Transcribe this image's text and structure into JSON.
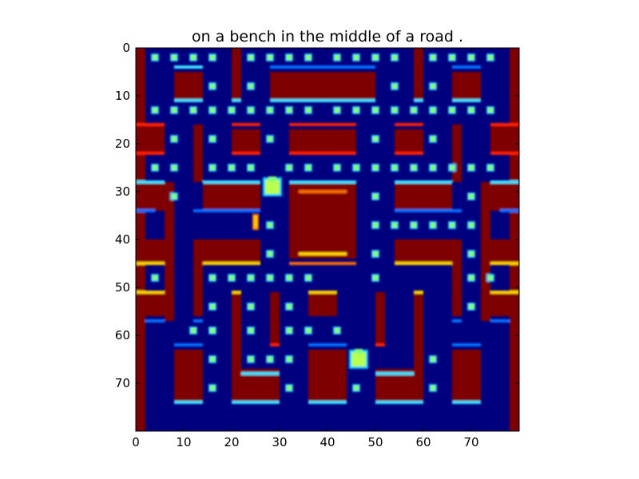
{
  "chart_data": {
    "type": "heatmap",
    "title": "on a bench in the middle of a road .",
    "colormap": "jet",
    "grid": false,
    "legend": "none",
    "xlim": [
      0,
      80
    ],
    "ylim": [
      0,
      80
    ],
    "x_origin": "left",
    "y_origin": "top",
    "x_ticks": [
      0,
      10,
      20,
      30,
      40,
      50,
      60,
      70
    ],
    "y_ticks": [
      0,
      10,
      20,
      30,
      40,
      50,
      60,
      70
    ],
    "colors": {
      "background": "#00007f",
      "wall": "#7f0000",
      "pellet": "#7fff7f",
      "edge_cyan": "#40e0ff",
      "edge_yellow": "#ffd000",
      "edge_orange": "#ff6a00",
      "edge_red": "#ff1a00",
      "edge_blue": "#0070ff",
      "sprite": "#b8ff50"
    },
    "walls": [
      [
        0,
        0,
        2,
        80
      ],
      [
        78,
        0,
        2,
        80
      ],
      [
        8,
        5,
        6,
        6
      ],
      [
        20,
        0,
        2,
        11
      ],
      [
        28,
        5,
        22,
        6
      ],
      [
        58,
        0,
        2,
        11
      ],
      [
        66,
        5,
        6,
        6
      ],
      [
        0,
        16,
        6,
        6
      ],
      [
        74,
        16,
        6,
        6
      ],
      [
        12,
        16,
        2,
        12
      ],
      [
        20,
        17,
        6,
        5
      ],
      [
        32,
        17,
        14,
        5
      ],
      [
        54,
        17,
        6,
        5
      ],
      [
        66,
        16,
        2,
        12
      ],
      [
        14,
        28,
        12,
        6
      ],
      [
        54,
        28,
        12,
        6
      ],
      [
        0,
        28,
        6,
        6
      ],
      [
        74,
        28,
        6,
        6
      ],
      [
        6,
        28,
        2,
        29
      ],
      [
        72,
        28,
        2,
        29
      ],
      [
        32,
        28,
        14,
        16
      ],
      [
        0,
        40,
        6,
        5
      ],
      [
        74,
        40,
        6,
        5
      ],
      [
        12,
        40,
        14,
        5
      ],
      [
        54,
        40,
        14,
        5
      ],
      [
        12,
        45,
        2,
        11
      ],
      [
        66,
        45,
        2,
        11
      ],
      [
        0,
        51,
        6,
        5
      ],
      [
        74,
        51,
        6,
        5
      ],
      [
        20,
        51,
        2,
        16
      ],
      [
        58,
        51,
        2,
        16
      ],
      [
        28,
        51,
        2,
        11
      ],
      [
        50,
        51,
        2,
        11
      ],
      [
        36,
        51,
        6,
        5
      ],
      [
        8,
        63,
        6,
        11
      ],
      [
        20,
        67,
        10,
        7
      ],
      [
        36,
        63,
        8,
        11
      ],
      [
        50,
        67,
        10,
        7
      ],
      [
        66,
        63,
        6,
        11
      ],
      [
        42,
        33,
        0,
        0
      ]
    ],
    "pellets": [
      [
        4,
        2
      ],
      [
        8,
        2
      ],
      [
        12,
        2
      ],
      [
        16,
        2
      ],
      [
        24,
        2
      ],
      [
        28,
        2
      ],
      [
        32,
        2
      ],
      [
        36,
        2
      ],
      [
        42,
        2
      ],
      [
        46,
        2
      ],
      [
        50,
        2
      ],
      [
        54,
        2
      ],
      [
        62,
        2
      ],
      [
        66,
        2
      ],
      [
        70,
        2
      ],
      [
        74,
        2
      ],
      [
        16,
        8
      ],
      [
        24,
        8
      ],
      [
        54,
        8
      ],
      [
        62,
        8
      ],
      [
        4,
        13
      ],
      [
        8,
        13
      ],
      [
        12,
        13
      ],
      [
        16,
        13
      ],
      [
        20,
        13
      ],
      [
        24,
        13
      ],
      [
        28,
        13
      ],
      [
        32,
        13
      ],
      [
        36,
        13
      ],
      [
        42,
        13
      ],
      [
        46,
        13
      ],
      [
        50,
        13
      ],
      [
        54,
        13
      ],
      [
        58,
        13
      ],
      [
        62,
        13
      ],
      [
        66,
        13
      ],
      [
        70,
        13
      ],
      [
        74,
        13
      ],
      [
        8,
        19
      ],
      [
        16,
        19
      ],
      [
        28,
        19
      ],
      [
        50,
        19
      ],
      [
        62,
        19
      ],
      [
        4,
        25
      ],
      [
        8,
        25
      ],
      [
        16,
        25
      ],
      [
        20,
        25
      ],
      [
        24,
        25
      ],
      [
        32,
        25
      ],
      [
        36,
        25
      ],
      [
        42,
        25
      ],
      [
        46,
        25
      ],
      [
        50,
        25
      ],
      [
        54,
        25
      ],
      [
        58,
        25
      ],
      [
        62,
        25
      ],
      [
        66,
        25
      ],
      [
        70,
        25
      ],
      [
        74,
        25
      ],
      [
        8,
        31
      ],
      [
        50,
        31
      ],
      [
        70,
        31
      ],
      [
        28,
        37
      ],
      [
        50,
        37
      ],
      [
        54,
        37
      ],
      [
        58,
        37
      ],
      [
        62,
        37
      ],
      [
        66,
        37
      ],
      [
        70,
        37
      ],
      [
        28,
        43
      ],
      [
        50,
        43
      ],
      [
        70,
        43
      ],
      [
        4,
        48
      ],
      [
        16,
        48
      ],
      [
        20,
        48
      ],
      [
        24,
        48
      ],
      [
        28,
        48
      ],
      [
        32,
        48
      ],
      [
        36,
        48
      ],
      [
        50,
        48
      ],
      [
        70,
        48
      ],
      [
        74,
        48
      ],
      [
        16,
        54
      ],
      [
        24,
        54
      ],
      [
        32,
        54
      ],
      [
        70,
        54
      ],
      [
        12,
        59
      ],
      [
        16,
        59
      ],
      [
        24,
        59
      ],
      [
        32,
        59
      ],
      [
        36,
        59
      ],
      [
        42,
        59
      ],
      [
        16,
        65
      ],
      [
        24,
        65
      ],
      [
        28,
        65
      ],
      [
        32,
        65
      ],
      [
        62,
        65
      ],
      [
        16,
        71
      ],
      [
        32,
        71
      ],
      [
        46,
        71
      ],
      [
        62,
        71
      ]
    ],
    "edges": [
      [
        8,
        4,
        6,
        "edge_cyan"
      ],
      [
        28,
        4,
        22,
        "edge_blue"
      ],
      [
        66,
        4,
        6,
        "edge_blue"
      ],
      [
        8,
        11,
        6,
        "edge_cyan"
      ],
      [
        20,
        11,
        2,
        "edge_cyan"
      ],
      [
        28,
        11,
        22,
        "edge_cyan"
      ],
      [
        58,
        11,
        2,
        "edge_cyan"
      ],
      [
        66,
        11,
        6,
        "edge_cyan"
      ],
      [
        0,
        16,
        6,
        "edge_red"
      ],
      [
        20,
        16,
        6,
        "edge_red"
      ],
      [
        32,
        16,
        14,
        "edge_red"
      ],
      [
        54,
        16,
        6,
        "edge_red"
      ],
      [
        74,
        16,
        6,
        "edge_red"
      ],
      [
        0,
        22,
        6,
        "edge_red"
      ],
      [
        20,
        22,
        6,
        "edge_red"
      ],
      [
        32,
        22,
        14,
        "edge_red"
      ],
      [
        54,
        22,
        6,
        "edge_red"
      ],
      [
        74,
        22,
        6,
        "edge_red"
      ],
      [
        0,
        28,
        6,
        "edge_cyan"
      ],
      [
        14,
        28,
        12,
        "edge_cyan"
      ],
      [
        32,
        28,
        14,
        "edge_cyan"
      ],
      [
        54,
        28,
        12,
        "edge_cyan"
      ],
      [
        74,
        28,
        6,
        "edge_cyan"
      ],
      [
        34,
        30,
        10,
        "edge_orange"
      ],
      [
        0,
        34,
        4,
        "edge_blue"
      ],
      [
        12,
        34,
        14,
        "edge_blue"
      ],
      [
        54,
        34,
        14,
        "edge_blue"
      ],
      [
        76,
        34,
        4,
        "edge_blue"
      ],
      [
        34,
        43,
        10,
        "edge_yellow"
      ],
      [
        0,
        45,
        6,
        "edge_yellow"
      ],
      [
        14,
        45,
        12,
        "edge_yellow"
      ],
      [
        32,
        45,
        14,
        "edge_orange"
      ],
      [
        54,
        45,
        12,
        "edge_yellow"
      ],
      [
        74,
        45,
        6,
        "edge_yellow"
      ],
      [
        0,
        51,
        6,
        "edge_yellow"
      ],
      [
        20,
        51,
        2,
        "edge_yellow"
      ],
      [
        36,
        51,
        6,
        "edge_yellow"
      ],
      [
        58,
        51,
        2,
        "edge_yellow"
      ],
      [
        74,
        51,
        6,
        "edge_yellow"
      ],
      [
        2,
        57,
        4,
        "edge_blue"
      ],
      [
        12,
        57,
        2,
        "edge_blue"
      ],
      [
        66,
        57,
        2,
        "edge_blue"
      ],
      [
        74,
        57,
        4,
        "edge_blue"
      ],
      [
        28,
        62,
        2,
        "edge_red"
      ],
      [
        50,
        62,
        2,
        "edge_red"
      ],
      [
        8,
        62,
        6,
        "edge_blue"
      ],
      [
        36,
        62,
        8,
        "edge_blue"
      ],
      [
        66,
        62,
        6,
        "edge_blue"
      ],
      [
        22,
        68,
        8,
        "edge_cyan"
      ],
      [
        50,
        68,
        8,
        "edge_cyan"
      ],
      [
        8,
        74,
        6,
        "edge_cyan"
      ],
      [
        20,
        74,
        10,
        "edge_cyan"
      ],
      [
        36,
        74,
        8,
        "edge_cyan"
      ],
      [
        50,
        74,
        10,
        "edge_cyan"
      ],
      [
        66,
        74,
        6,
        "edge_cyan"
      ]
    ],
    "sprites": [
      [
        28.5,
        29,
        "sprite"
      ],
      [
        46.5,
        65,
        "sprite"
      ]
    ],
    "ghost": [
      25,
      36
    ]
  }
}
